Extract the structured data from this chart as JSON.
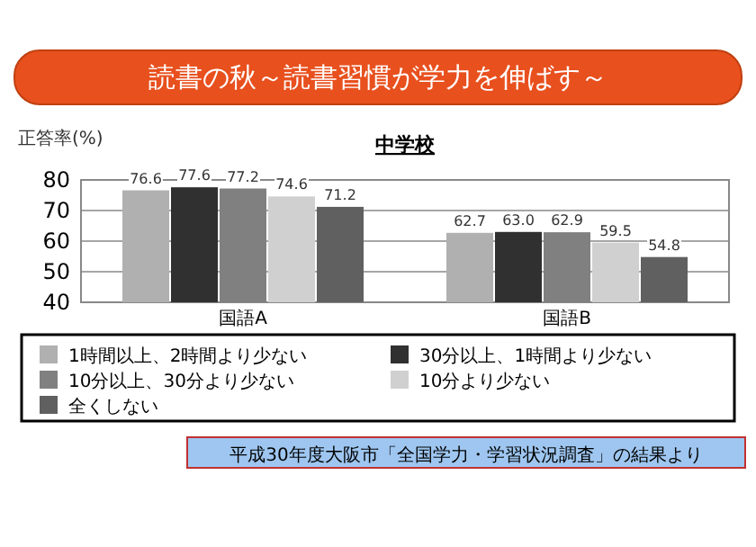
{
  "chart_data": {
    "type": "bar",
    "title": "中学校",
    "subtitle": "読書の秋～読書習慣が学力を伸ばす～",
    "ylabel": "正答率(%)",
    "annotations": [
      "平成30年度大阪市「全国学力・学習状況調査」の結果より"
    ],
    "categories": [
      "国語A",
      "国語B"
    ],
    "series": [
      {
        "name": "1時間以上、2時間より少ない",
        "color": "#b0b0b0",
        "values": [
          76.6,
          62.7
        ],
        "value_labels": [
          "76.6",
          "62.7"
        ]
      },
      {
        "name": "30分以上、1時間より少ない",
        "color": "#303030",
        "values": [
          77.6,
          63.0
        ],
        "value_labels": [
          "77.6",
          "63.0"
        ]
      },
      {
        "name": "10分以上、30分より少ない",
        "color": "#808080",
        "values": [
          77.2,
          62.9
        ],
        "value_labels": [
          "77.2",
          "62.9"
        ]
      },
      {
        "name": "10分より少ない",
        "color": "#d0d0d0",
        "values": [
          74.6,
          59.5
        ],
        "value_labels": [
          "74.6",
          "59.5"
        ]
      },
      {
        "name": "全くしない",
        "color": "#606060",
        "values": [
          71.2,
          54.8
        ],
        "value_labels": [
          "71.2",
          "54.8"
        ]
      }
    ],
    "ylim": [
      40,
      80
    ],
    "yticks": [
      40,
      50,
      60,
      70,
      80
    ],
    "grid": "y",
    "legend": "bottom"
  }
}
